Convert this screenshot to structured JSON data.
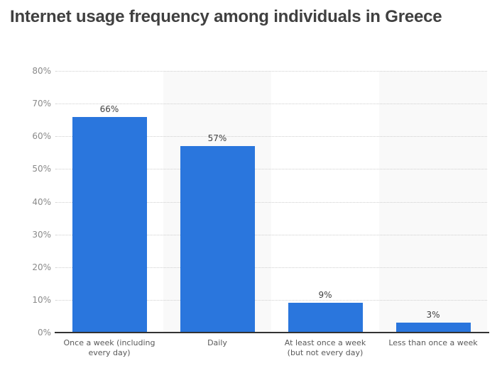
{
  "title": "Internet usage frequency among individuals in Greece",
  "chart_data": {
    "type": "bar",
    "title": "Internet usage frequency among individuals in Greece",
    "categories": [
      "Once a week (including\nevery day)",
      "Daily",
      "At least once a week\n(but not every day)",
      "Less than once a week"
    ],
    "values": [
      66,
      57,
      9,
      3
    ],
    "value_labels": [
      "66%",
      "57%",
      "9%",
      "3%"
    ],
    "xlabel": "",
    "ylabel": "",
    "ylim": [
      0,
      80
    ],
    "ytick_step": 10,
    "ytick_labels": [
      "0%",
      "10%",
      "20%",
      "30%",
      "40%",
      "50%",
      "60%",
      "70%",
      "80%"
    ],
    "grid": "horizontal-dotted",
    "legend": "none",
    "plot_bands": "alternating columns on categories 2 and 4",
    "colors": {
      "bar": "#2a76dd",
      "band": "#f9f9f9",
      "gridline": "#cfcfcf",
      "axis_line": "#333333",
      "title_text": "#404040",
      "tick_text": "#8a8a8a",
      "value_text": "#404040",
      "category_text": "#595959",
      "background": "#ffffff"
    }
  }
}
